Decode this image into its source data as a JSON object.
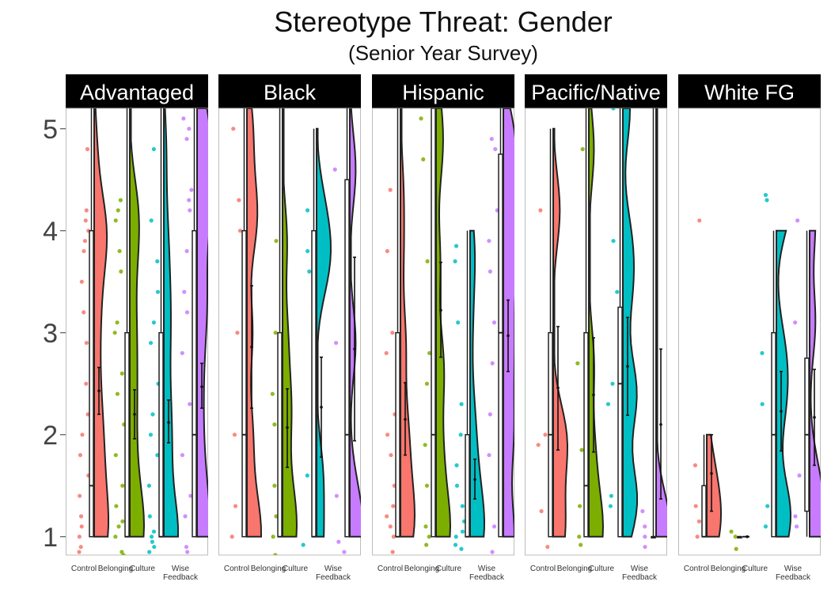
{
  "title": "Stereotype Threat: Gender",
  "subtitle": "(Senior Year Survey)",
  "chart_data": {
    "type": "raincloud",
    "ylim": [
      0.82,
      5.2
    ],
    "y_ticks": [
      "1",
      "2",
      "3",
      "4",
      "5"
    ],
    "conditions": [
      "Control",
      "Belonging",
      "Culture",
      "Wise Feedback"
    ],
    "colors": {
      "Control": "#F8766D",
      "Belonging": "#7CAE00",
      "Culture": "#00BFC4",
      "Wise Feedback": "#C77CFF"
    },
    "panels": [
      {
        "name": "Advantaged",
        "groups": [
          {
            "condition": "Control",
            "box": [
              1,
              1,
              1.5,
              4,
              5.2
            ],
            "mean": 2.43,
            "ci": [
              2.2,
              2.66
            ],
            "points": [
              0.85,
              0.9,
              1.0,
              1.1,
              1.2,
              1.4,
              1.6,
              1.8,
              2.0,
              2.2,
              2.5,
              2.9,
              3.2,
              3.5,
              3.8,
              3.9,
              4.0,
              4.1,
              4.2,
              4.8
            ]
          },
          {
            "condition": "Belonging",
            "box": [
              1,
              1,
              1,
              3,
              5.2
            ],
            "mean": 2.2,
            "ci": [
              1.96,
              2.44
            ],
            "points": [
              0.82,
              0.85,
              1.0,
              1.1,
              1.15,
              1.3,
              1.5,
              1.8,
              2.1,
              2.4,
              2.6,
              3.0,
              3.1,
              3.6,
              3.8,
              4.1,
              4.2,
              4.3
            ]
          },
          {
            "condition": "Culture",
            "box": [
              1,
              1,
              1,
              3,
              5.2
            ],
            "mean": 2.12,
            "ci": [
              1.92,
              2.34
            ],
            "points": [
              0.85,
              0.9,
              0.95,
              1.0,
              1.05,
              1.2,
              1.5,
              1.8,
              2.0,
              2.2,
              2.5,
              2.9,
              3.1,
              3.4,
              3.7,
              4.1,
              4.8
            ]
          },
          {
            "condition": "Wise Feedback",
            "box": [
              1,
              1,
              2,
              4,
              5.2
            ],
            "mean": 2.47,
            "ci": [
              2.26,
              2.7
            ],
            "points": [
              0.85,
              0.9,
              1.2,
              1.4,
              1.8,
              2.3,
              2.8,
              3.2,
              3.4,
              3.8,
              4.2,
              4.3,
              4.4,
              4.9,
              5.0,
              5.1
            ]
          }
        ]
      },
      {
        "name": "Black",
        "groups": [
          {
            "condition": "Control",
            "box": [
              1,
              1,
              2,
              4,
              5.2
            ],
            "mean": 2.86,
            "ci": [
              2.26,
              3.46
            ],
            "points": [
              0.8,
              1.0,
              1.3,
              2.0,
              3.0,
              4.0,
              4.3,
              5.0
            ]
          },
          {
            "condition": "Belonging",
            "box": [
              1,
              1,
              1,
              3,
              5.2
            ],
            "mean": 2.07,
            "ci": [
              1.68,
              2.45
            ],
            "points": [
              0.82,
              1.0,
              1.2,
              1.5,
              2.1,
              2.4,
              3.0,
              3.9
            ]
          },
          {
            "condition": "Culture",
            "box": [
              1,
              1,
              1,
              4,
              5.0
            ],
            "mean": 2.27,
            "ci": [
              1.78,
              2.76
            ],
            "points": [
              0.92,
              1.6,
              3.6,
              3.8,
              4.2
            ]
          },
          {
            "condition": "Wise Feedback",
            "box": [
              1,
              1,
              2,
              4.5,
              5.2
            ],
            "mean": 2.84,
            "ci": [
              1.94,
              3.74
            ],
            "points": [
              0.85,
              0.95,
              1.4,
              2.9,
              4.6
            ]
          }
        ]
      },
      {
        "name": "Hispanic",
        "groups": [
          {
            "condition": "Control",
            "box": [
              1,
              1,
              1,
              3,
              5.2
            ],
            "mean": 2.15,
            "ci": [
              1.8,
              2.51
            ],
            "points": [
              0.85,
              1.0,
              1.1,
              1.2,
              1.3,
              1.5,
              1.8,
              2.0,
              2.2,
              2.8,
              3.0,
              3.8,
              4.4
            ]
          },
          {
            "condition": "Belonging",
            "box": [
              1,
              1,
              2,
              5.2,
              5.2
            ],
            "mean": 3.22,
            "ci": [
              2.76,
              3.69
            ],
            "points": [
              0.92,
              1.0,
              1.1,
              1.5,
              1.9,
              2.5,
              2.8,
              3.7,
              4.7,
              5.1
            ]
          },
          {
            "condition": "Culture",
            "box": [
              1,
              1,
              1,
              2,
              4.0
            ],
            "mean": 1.56,
            "ci": [
              1.37,
              1.76
            ],
            "points": [
              0.88,
              0.92,
              1.0,
              1.05,
              1.15,
              1.3,
              1.5,
              1.7,
              2.0,
              2.3,
              3.1,
              3.7,
              3.85
            ]
          },
          {
            "condition": "Wise Feedback",
            "box": [
              1,
              1,
              3,
              4.75,
              5.2
            ],
            "mean": 2.97,
            "ci": [
              2.62,
              3.32
            ],
            "points": [
              0.85,
              1.1,
              1.8,
              2.2,
              2.7,
              3.1,
              3.6,
              3.9,
              4.2,
              4.8,
              4.9
            ]
          }
        ]
      },
      {
        "name": "Pacific/Native",
        "groups": [
          {
            "condition": "Control",
            "box": [
              1,
              1,
              2,
              3,
              5.0
            ],
            "mean": 2.46,
            "ci": [
              1.85,
              3.06
            ],
            "points": [
              0.9,
              1.25,
              1.9,
              2.0,
              4.2
            ]
          },
          {
            "condition": "Belonging",
            "box": [
              1,
              1,
              1.5,
              3,
              5.2
            ],
            "mean": 2.39,
            "ci": [
              1.83,
              2.95
            ],
            "points": [
              0.92,
              1.0,
              1.3,
              1.85,
              2.7,
              4.8
            ]
          },
          {
            "condition": "Culture",
            "box": [
              1,
              1,
              2.5,
              3.25,
              5.2
            ],
            "mean": 2.67,
            "ci": [
              2.19,
              3.15
            ],
            "points": [
              1.3,
              1.4,
              2.3,
              2.5,
              3.4,
              3.9,
              5.2
            ]
          },
          {
            "condition": "Wise Feedback",
            "box": [
              1,
              1,
              1,
              1,
              5.2
            ],
            "mean": 2.1,
            "ci": [
              1.37,
              2.84
            ],
            "points": [
              0.9,
              1.0,
              1.1,
              1.25
            ]
          }
        ]
      },
      {
        "name": "White FG",
        "groups": [
          {
            "condition": "Control",
            "box": [
              1,
              1,
              1,
              1.5,
              2.0
            ],
            "mean": 1.62,
            "ci": [
              1.25,
              2.0
            ],
            "points": [
              1.0,
              1.15,
              1.3,
              1.7,
              4.1
            ]
          },
          {
            "condition": "Belonging",
            "box": [
              1,
              1,
              1,
              1,
              1
            ],
            "mean": 1.0,
            "ci": [
              1.0,
              1.0
            ],
            "points": [
              0.88,
              1.0,
              1.05
            ]
          },
          {
            "condition": "Culture",
            "box": [
              1,
              1,
              2,
              3,
              4.0
            ],
            "mean": 2.23,
            "ci": [
              1.84,
              2.62
            ],
            "points": [
              1.1,
              1.3,
              2.3,
              2.8,
              4.3,
              4.35
            ]
          },
          {
            "condition": "Wise Feedback",
            "box": [
              1,
              1.25,
              2,
              2.75,
              4.0
            ],
            "mean": 2.17,
            "ci": [
              1.7,
              2.64
            ],
            "points": [
              1.1,
              1.2,
              1.6,
              3.1,
              4.1
            ]
          }
        ]
      }
    ],
    "x_tick_labels": [
      "Control",
      "Belonging",
      "Culture",
      "Wise\nFeedback"
    ]
  }
}
